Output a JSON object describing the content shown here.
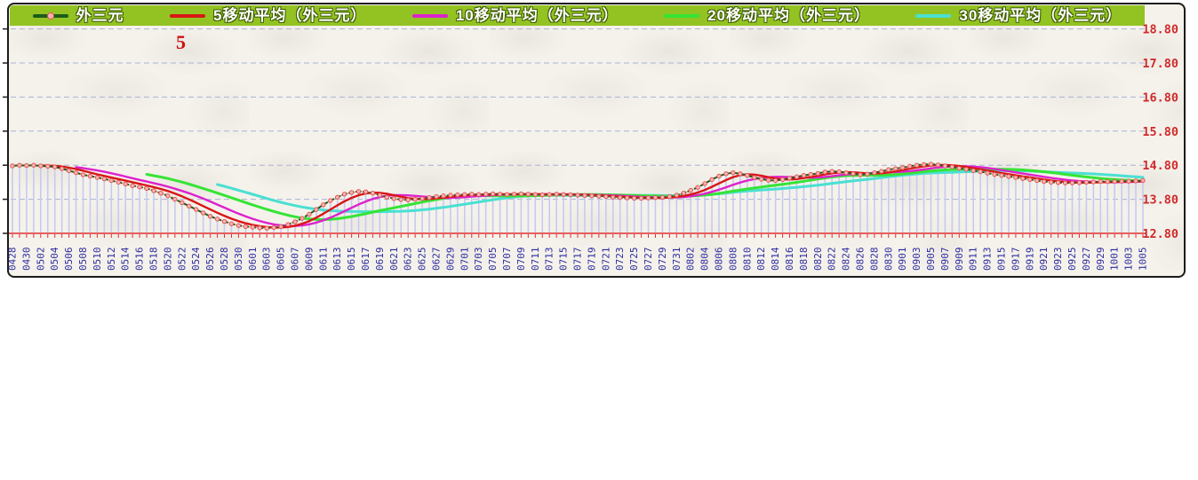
{
  "chart_data": {
    "type": "line",
    "legend_position": "top",
    "grid": true,
    "annotation": "5",
    "legend": [
      {
        "label": "外三元",
        "color": "#1a5c1a",
        "marker": "dot-line"
      },
      {
        "label": "5移动平均（外三元）",
        "color": "#d81616",
        "marker": "line"
      },
      {
        "label": "10移动平均（外三元）",
        "color": "#dd22cc",
        "marker": "line"
      },
      {
        "label": "20移动平均（外三元）",
        "color": "#35e435",
        "marker": "line"
      },
      {
        "label": "30移动平均（外三元）",
        "color": "#4ae0d2",
        "marker": "line"
      }
    ],
    "moving_average_periods": [
      5,
      10,
      20,
      30
    ],
    "ylim": [
      12.8,
      18.8
    ],
    "y_ticks": [
      {
        "value": 18.8,
        "label": "18.80"
      },
      {
        "value": 17.8,
        "label": "17.80"
      },
      {
        "value": 16.8,
        "label": "16.80"
      },
      {
        "value": 15.8,
        "label": "15.80"
      },
      {
        "value": 14.8,
        "label": "14.80"
      },
      {
        "value": 13.8,
        "label": "13.80"
      },
      {
        "value": 12.8,
        "label": "12.80"
      }
    ],
    "x_labels": [
      "0428",
      "0430",
      "0502",
      "0504",
      "0506",
      "0508",
      "0510",
      "0512",
      "0514",
      "0516",
      "0518",
      "0520",
      "0522",
      "0524",
      "0526",
      "0528",
      "0530",
      "0601",
      "0603",
      "0605",
      "0607",
      "0609",
      "0611",
      "0613",
      "0615",
      "0617",
      "0619",
      "0621",
      "0623",
      "0625",
      "0627",
      "0629",
      "0701",
      "0703",
      "0705",
      "0707",
      "0709",
      "0711",
      "0713",
      "0715",
      "0717",
      "0719",
      "0721",
      "0723",
      "0725",
      "0727",
      "0729",
      "0731",
      "0802",
      "0804",
      "0806",
      "0808",
      "0810",
      "0812",
      "0814",
      "0816",
      "0818",
      "0820",
      "0822",
      "0824",
      "0826",
      "0828",
      "0830",
      "0901",
      "0903",
      "0905",
      "0907",
      "0909",
      "0911",
      "0913",
      "0915",
      "0917",
      "0919",
      "0921",
      "0923",
      "0925",
      "0927",
      "0929",
      "1001",
      "1003",
      "1005"
    ],
    "x_label_every_n_points": 2,
    "series": {
      "name": "外三元",
      "values": [
        14.78,
        14.8,
        14.79,
        14.8,
        14.78,
        14.77,
        14.75,
        14.7,
        14.64,
        14.58,
        14.52,
        14.48,
        14.44,
        14.4,
        14.35,
        14.3,
        14.25,
        14.2,
        14.16,
        14.12,
        14.05,
        13.98,
        13.9,
        13.8,
        13.7,
        13.6,
        13.5,
        13.4,
        13.3,
        13.22,
        13.15,
        13.08,
        13.03,
        13.0,
        12.98,
        12.96,
        12.95,
        12.97,
        13.0,
        13.06,
        13.14,
        13.24,
        13.36,
        13.5,
        13.64,
        13.76,
        13.86,
        13.95,
        14.0,
        14.03,
        14.02,
        13.98,
        13.92,
        13.86,
        13.82,
        13.79,
        13.78,
        13.8,
        13.82,
        13.85,
        13.88,
        13.9,
        13.92,
        13.93,
        13.94,
        13.95,
        13.94,
        13.95,
        13.96,
        13.95,
        13.94,
        13.95,
        13.96,
        13.95,
        13.94,
        13.93,
        13.94,
        13.95,
        13.94,
        13.93,
        13.92,
        13.91,
        13.9,
        13.89,
        13.88,
        13.86,
        13.85,
        13.84,
        13.83,
        13.83,
        13.84,
        13.85,
        13.86,
        13.88,
        13.92,
        13.98,
        14.06,
        14.15,
        14.26,
        14.38,
        14.48,
        14.55,
        14.58,
        14.55,
        14.5,
        14.44,
        14.39,
        14.36,
        14.35,
        14.38,
        14.42,
        14.46,
        14.5,
        14.53,
        14.56,
        14.6,
        14.62,
        14.61,
        14.58,
        14.55,
        14.52,
        14.54,
        14.58,
        14.62,
        14.67,
        14.7,
        14.73,
        14.77,
        14.8,
        14.82,
        14.83,
        14.81,
        14.78,
        14.75,
        14.71,
        14.68,
        14.64,
        14.61,
        14.57,
        14.53,
        14.5,
        14.47,
        14.44,
        14.41,
        14.38,
        14.35,
        14.32,
        14.3,
        14.29,
        14.28,
        14.28,
        14.29,
        14.3,
        14.31,
        14.32,
        14.32,
        14.32,
        14.33,
        14.33,
        14.34,
        14.35
      ]
    }
  },
  "colors": {
    "legend_bar": "#93c322",
    "marker_fill": "#ffb3b3",
    "marker_edge": "#e05555",
    "grid": "#a9b2d6",
    "drop_line": "#c7caee",
    "axis_bottom": "#e03030",
    "axis_left": "#1b1b1b",
    "x_label": "#2b2b9e",
    "y_label": "#cf2b2b",
    "annotation": "#cc1111"
  }
}
